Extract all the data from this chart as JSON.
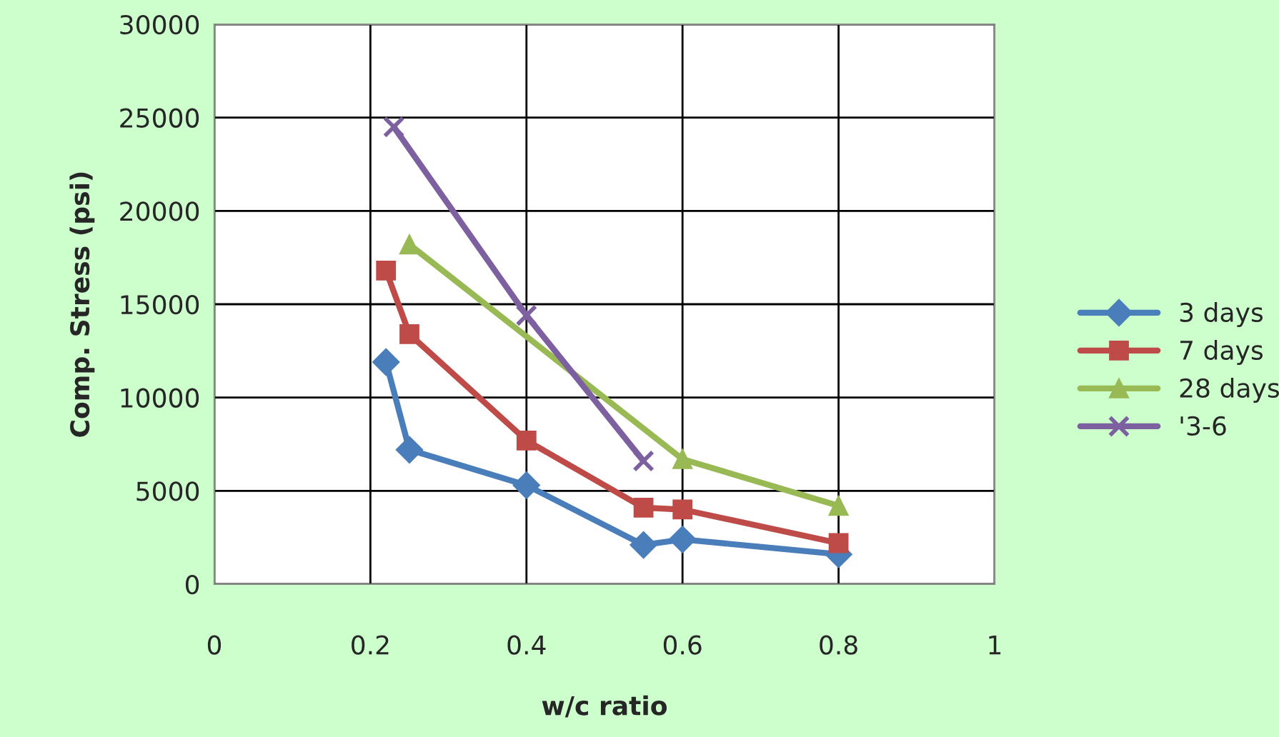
{
  "chart_data": {
    "type": "line",
    "xlabel": "w/c ratio",
    "ylabel": "Comp. Stress (psi)",
    "xlim": [
      0,
      1
    ],
    "xticks": [
      0,
      0.2,
      0.4,
      0.6,
      0.8,
      1
    ],
    "ylim": [
      0,
      30000
    ],
    "yticks": [
      0,
      5000,
      10000,
      15000,
      20000,
      25000,
      30000
    ],
    "grid": true,
    "legend": "right",
    "series": [
      {
        "name": "3 days",
        "color": "#4a7ebb",
        "marker": "diamond",
        "x": [
          0.22,
          0.25,
          0.4,
          0.55,
          0.6,
          0.8
        ],
        "values": [
          11900,
          7200,
          5300,
          2100,
          2400,
          1600
        ]
      },
      {
        "name": "7 days",
        "color": "#be4b48",
        "marker": "square",
        "x": [
          0.22,
          0.25,
          0.4,
          0.55,
          0.6,
          0.8
        ],
        "values": [
          16800,
          13400,
          7700,
          4100,
          4000,
          2200
        ]
      },
      {
        "name": "28 days",
        "color": "#98b954",
        "marker": "triangle",
        "x": [
          0.25,
          0.6,
          0.8
        ],
        "values": [
          18200,
          6700,
          4200
        ]
      },
      {
        "name": "'3-6",
        "color": "#7d60a0",
        "marker": "cross",
        "x": [
          0.23,
          0.4,
          0.55
        ],
        "values": [
          24500,
          14400,
          6600
        ]
      }
    ]
  }
}
